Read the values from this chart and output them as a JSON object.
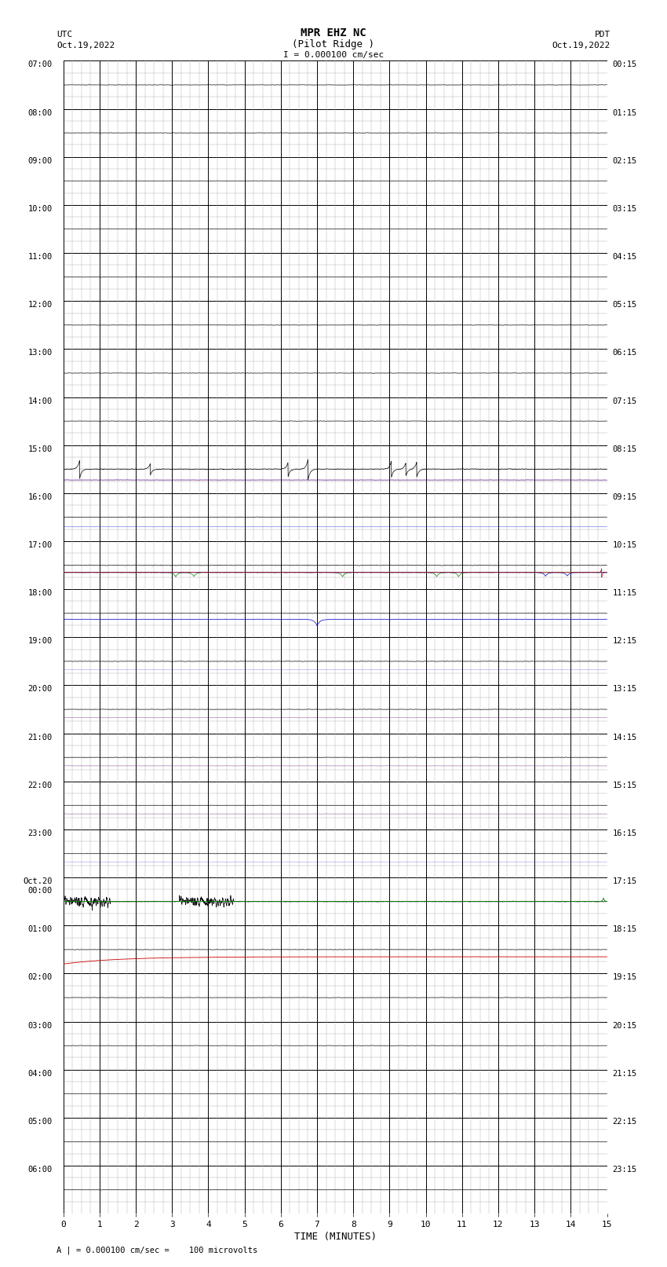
{
  "title_line1": "MPR EHZ NC",
  "title_line2": "(Pilot Ridge )",
  "title_line3": "I = 0.000100 cm/sec",
  "left_header": "UTC",
  "left_date": "Oct.19,2022",
  "right_header": "PDT",
  "right_date": "Oct.19,2022",
  "xlabel": "TIME (MINUTES)",
  "footer": "A | = 0.000100 cm/sec =    100 microvolts",
  "utc_labels": [
    "07:00",
    "08:00",
    "09:00",
    "10:00",
    "11:00",
    "12:00",
    "13:00",
    "14:00",
    "15:00",
    "16:00",
    "17:00",
    "18:00",
    "19:00",
    "20:00",
    "21:00",
    "22:00",
    "23:00",
    "Oct.20\n00:00",
    "01:00",
    "02:00",
    "03:00",
    "04:00",
    "05:00",
    "06:00"
  ],
  "pdt_labels": [
    "00:15",
    "01:15",
    "02:15",
    "03:15",
    "04:15",
    "05:15",
    "06:15",
    "07:15",
    "08:15",
    "09:15",
    "10:15",
    "11:15",
    "12:15",
    "13:15",
    "14:15",
    "15:15",
    "16:15",
    "17:15",
    "18:15",
    "19:15",
    "20:15",
    "21:15",
    "22:15",
    "23:15"
  ],
  "num_rows": 24,
  "sub_rows": 4,
  "x_min": 0,
  "x_max": 15,
  "background_color": "#ffffff",
  "major_grid_color": "#000000",
  "minor_grid_color": "#aaaaaa",
  "fig_width": 8.5,
  "fig_height": 16.13,
  "dpi": 100
}
